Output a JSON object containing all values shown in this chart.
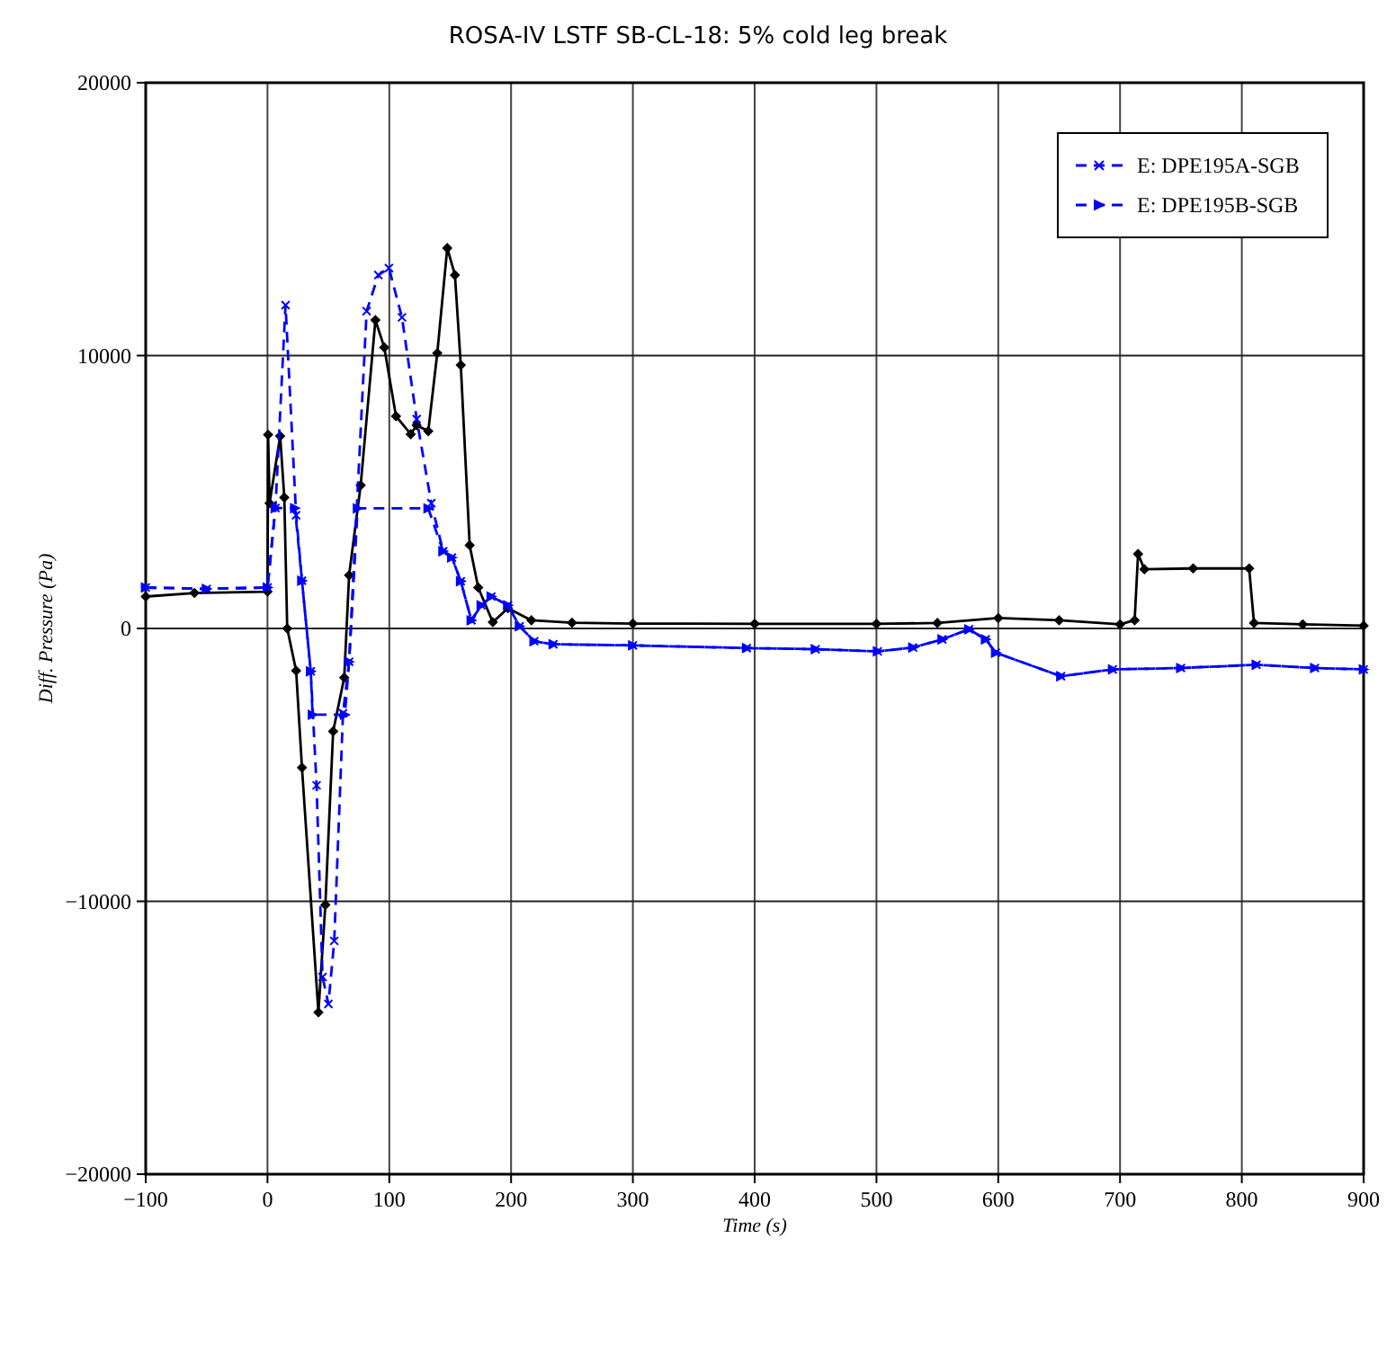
{
  "chart_data": {
    "type": "line",
    "title": "ROSA-IV LSTF SB-CL-18: 5% cold leg break",
    "xlabel": "Time (s)",
    "ylabel": "Diff. Pressure (Pa)",
    "xlim": [
      -100,
      900
    ],
    "xticks": [
      -100,
      0,
      100,
      200,
      300,
      400,
      500,
      600,
      700,
      800,
      900
    ],
    "ylim": [
      -20000,
      20000
    ],
    "yticks": [
      -20000,
      -10000,
      0,
      10000,
      20000
    ],
    "grid": true,
    "legend": "top right",
    "series": [
      {
        "color": "#000000",
        "marker": "diamond",
        "line_style": "solid",
        "x": [
          -100,
          -60,
          0,
          0.5,
          1.7,
          10.4,
          13.8,
          16.2,
          23.5,
          28.3,
          41.8,
          47.5,
          53.9,
          63,
          67,
          76.5,
          88.6,
          95.9,
          105.5,
          117.6,
          122.4,
          132,
          139.4,
          147.6,
          153.9,
          158.7,
          166,
          173,
          185,
          197.4,
          216.7,
          250,
          300,
          400,
          500,
          550,
          600,
          650,
          700,
          712,
          714.8,
          720,
          760,
          806,
          810,
          850,
          900
        ],
        "values": [
          1170,
          1300,
          1350,
          7100,
          4590,
          7050,
          4800,
          0,
          -1550,
          -5100,
          -14070,
          -10130,
          -3770,
          -1800,
          1950,
          5250,
          11300,
          10300,
          7780,
          7120,
          7450,
          7230,
          10090,
          13940,
          12950,
          9650,
          3050,
          1500,
          230,
          740,
          300,
          210,
          180,
          170,
          170,
          200,
          380,
          300,
          150,
          300,
          2730,
          2170,
          2200,
          2200,
          200,
          150,
          100
        ]
      },
      {
        "name": "E: DPE195A-SGB",
        "color": "#0000ff",
        "marker": "cross",
        "line_style": "dashed",
        "x": [
          -100,
          -50,
          0,
          6.5,
          14.8,
          23.5,
          28.3,
          35.5,
          40.3,
          45.2,
          50,
          54.8,
          62,
          67,
          81.4,
          91,
          99.7,
          110.4,
          122.5,
          134.5,
          144.2,
          151.4,
          158.7,
          167.4,
          175.6,
          183.8,
          197.4,
          207,
          219,
          234.7,
          300,
          393.5,
          450,
          501,
          530,
          554,
          576,
          589.7,
          598,
          651.5,
          694,
          750,
          812,
          860,
          900
        ],
        "values": [
          1500,
          1450,
          1500,
          4410,
          11850,
          4150,
          1750,
          -1570,
          -5750,
          -12770,
          -13760,
          -11450,
          -3110,
          -1220,
          11630,
          12950,
          13210,
          11400,
          7670,
          4590,
          2830,
          2600,
          1730,
          300,
          850,
          1170,
          850,
          80,
          -470,
          -580,
          -620,
          -720,
          -760,
          -840,
          -700,
          -400,
          -30,
          -400,
          -890,
          -1750,
          -1500,
          -1450,
          -1330,
          -1450,
          -1500
        ]
      },
      {
        "name": "E: DPE195B-SGB",
        "color": "#0000ff",
        "marker": "triangle",
        "line_style": "dashed",
        "x": [
          -100,
          -50,
          0,
          6.5,
          22.5,
          28.3,
          35.5,
          37,
          63.5,
          67,
          74,
          132,
          144.2,
          151.4,
          158.7,
          167.4,
          175.6,
          183.8,
          197.4,
          207,
          219,
          234.7,
          300,
          393.5,
          450,
          501,
          530,
          554,
          576,
          589.7,
          598,
          651.5,
          694,
          750,
          812,
          860,
          900
        ],
        "values": [
          1500,
          1450,
          1500,
          4410,
          4410,
          1750,
          -1570,
          -3160,
          -3160,
          -1220,
          4400,
          4400,
          2830,
          2600,
          1730,
          300,
          850,
          1170,
          850,
          80,
          -470,
          -580,
          -620,
          -720,
          -760,
          -840,
          -700,
          -400,
          -30,
          -400,
          -890,
          -1750,
          -1500,
          -1450,
          -1330,
          -1450,
          -1500
        ]
      }
    ]
  }
}
